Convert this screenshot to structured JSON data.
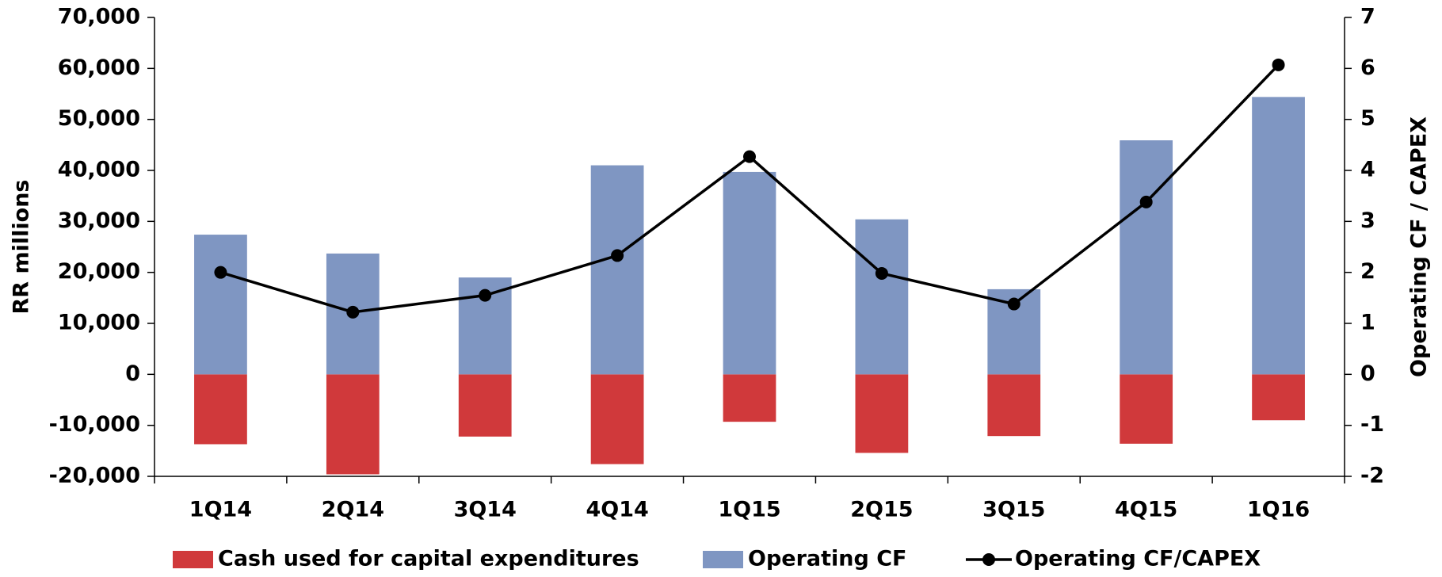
{
  "chart_data": {
    "type": "bar",
    "categories": [
      "1Q14",
      "2Q14",
      "3Q14",
      "4Q14",
      "1Q15",
      "2Q15",
      "3Q15",
      "4Q15",
      "1Q16"
    ],
    "series": [
      {
        "name": "Cash used for capital expenditures",
        "color": "#d0393b",
        "values": [
          -13700,
          -19600,
          -12200,
          -17600,
          -9300,
          -15400,
          -12100,
          -13600,
          -9000
        ]
      },
      {
        "name": "Operating CF",
        "color": "#7f96c2",
        "values": [
          27400,
          23700,
          19000,
          41000,
          39700,
          30400,
          16700,
          45900,
          54400
        ]
      },
      {
        "name": "Operating CF/CAPEX",
        "color": "#000000",
        "type": "line",
        "axis": "y2",
        "values": [
          2.0,
          1.22,
          1.55,
          2.33,
          4.27,
          1.98,
          1.38,
          3.38,
          6.07
        ]
      }
    ],
    "y_label": "RR millions",
    "y2_label": "Operating CF / CAPEX",
    "ylim": [
      -20000,
      70000
    ],
    "yticks": [
      {
        "value": -20000,
        "label": "-20,000"
      },
      {
        "value": -10000,
        "label": "-10,000"
      },
      0,
      {
        "value": 10000,
        "label": "10,000"
      },
      {
        "value": 20000,
        "label": "20,000"
      },
      {
        "value": 30000,
        "label": "30,000"
      },
      {
        "value": 40000,
        "label": "40,000"
      },
      {
        "value": 50000,
        "label": "50,000"
      },
      {
        "value": 60000,
        "label": "60,000"
      },
      {
        "value": 70000,
        "label": "70,000"
      }
    ],
    "y2lim": [
      -2,
      7
    ],
    "y2ticks": [
      -2,
      -1,
      0,
      1,
      2,
      3,
      4,
      5,
      6,
      7
    ],
    "legend": "bottom"
  }
}
